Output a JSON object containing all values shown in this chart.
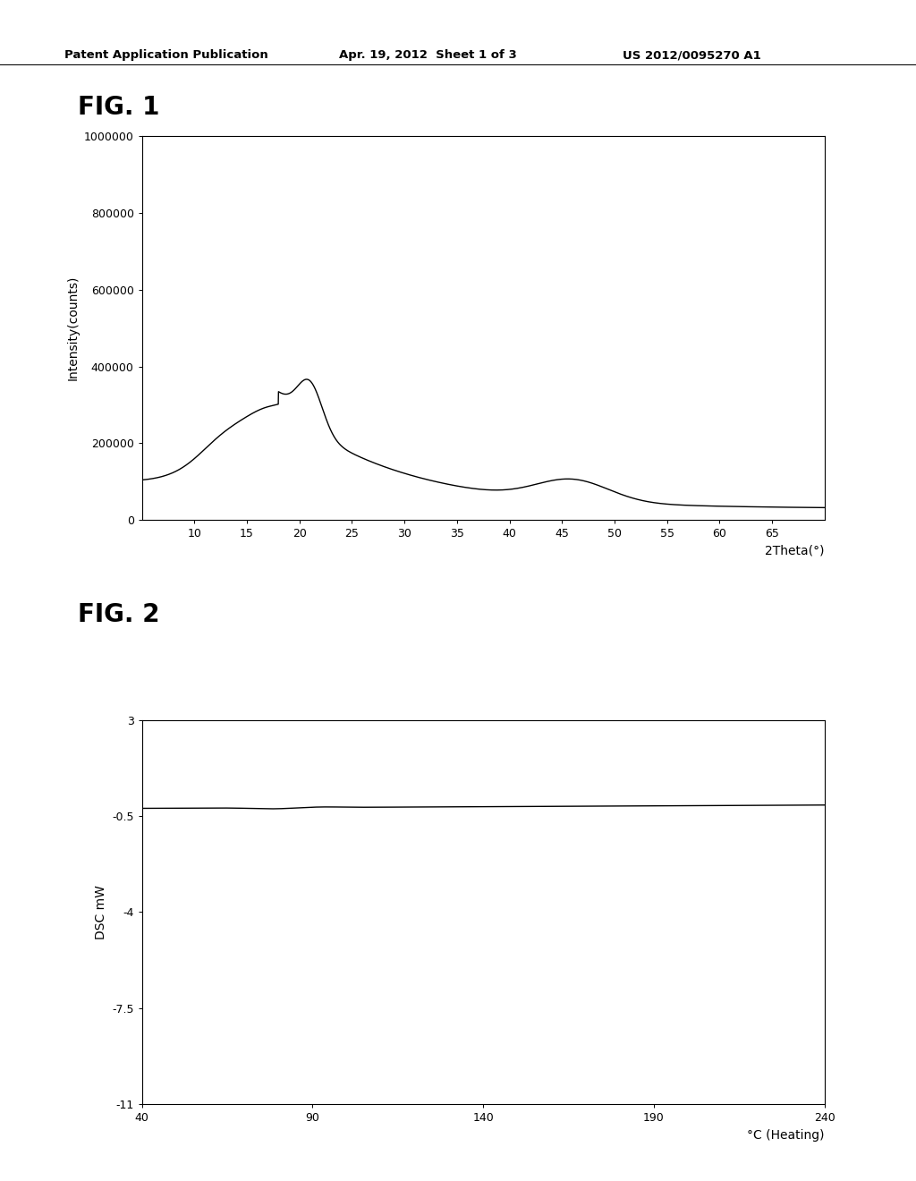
{
  "header_left": "Patent Application Publication",
  "header_mid": "Apr. 19, 2012  Sheet 1 of 3",
  "header_right": "US 2012/0095270 A1",
  "fig1_title": "FIG. 1",
  "fig1_xlabel": "2Theta(°)",
  "fig1_ylabel": "Intensity(counts)",
  "fig1_xlim": [
    5,
    70
  ],
  "fig1_ylim": [
    0,
    1000000
  ],
  "fig1_xticks": [
    10,
    15,
    20,
    25,
    30,
    35,
    40,
    45,
    50,
    55,
    60,
    65
  ],
  "fig1_yticks": [
    0,
    200000,
    400000,
    600000,
    800000,
    1000000
  ],
  "fig1_ytick_labels": [
    "0",
    "200000",
    "400000",
    "600000",
    "800000",
    "1000000"
  ],
  "fig2_title": "FIG. 2",
  "fig2_xlabel": "°C (Heating)",
  "fig2_ylabel": "DSC mW",
  "fig2_xlim": [
    40,
    240
  ],
  "fig2_ylim": [
    -11,
    3
  ],
  "fig2_xticks": [
    40,
    90,
    140,
    190,
    240
  ],
  "fig2_yticks": [
    -11,
    -7.5,
    -4,
    -0.5,
    3
  ],
  "fig2_ytick_labels": [
    "-11",
    "-7.5",
    "-4",
    "-0.5",
    "3"
  ],
  "line_color": "#000000",
  "background_color": "#ffffff",
  "border_color": "#000000"
}
